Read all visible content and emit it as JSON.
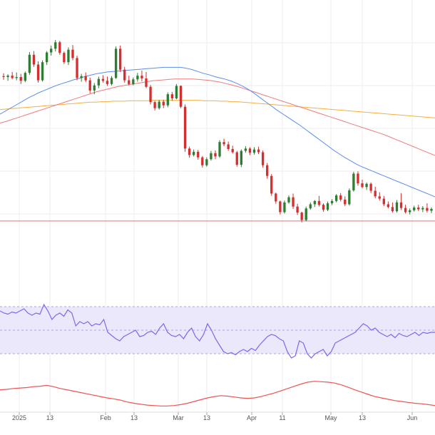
{
  "colors": {
    "up": "#2e7d32",
    "down": "#d32f2f",
    "ma_fast": "#5b8def",
    "ma_mid": "#ef7b7b",
    "ma_slow": "#f5b041",
    "support": "#e57373",
    "rsi_line": "#7b68ee",
    "rsi_band": "#ece8fb",
    "lower_line": "#ef5350",
    "grid": "#eeeeee",
    "border": "#dddddd"
  },
  "chart_data": {
    "type": "candlestick",
    "grid": true,
    "x_ticks": [
      "2025",
      "13",
      "Feb",
      "13",
      "Mar",
      "13",
      "Apr",
      "11",
      "May",
      "13",
      "Jun"
    ],
    "price": {
      "ylim": [
        50,
        103
      ],
      "support_level": 55.4,
      "candles": [
        [
          86.6,
          87.2,
          85.8,
          86.4
        ],
        [
          86.4,
          87.0,
          85.6,
          86.7
        ],
        [
          86.7,
          87.5,
          85.9,
          86.2
        ],
        [
          86.2,
          87.4,
          85.7,
          86.4
        ],
        [
          86.4,
          87.1,
          84.9,
          85.6
        ],
        [
          85.6,
          87.6,
          85.3,
          87.3
        ],
        [
          87.3,
          91.8,
          86.9,
          91.2
        ],
        [
          91.2,
          92.0,
          88.6,
          89.1
        ],
        [
          89.1,
          89.8,
          85.2,
          85.7
        ],
        [
          85.7,
          90.0,
          85.4,
          89.6
        ],
        [
          89.6,
          92.0,
          89.0,
          91.7
        ],
        [
          91.7,
          93.2,
          91.0,
          92.5
        ],
        [
          92.5,
          94.4,
          91.9,
          93.9
        ],
        [
          93.9,
          94.2,
          91.2,
          91.6
        ],
        [
          91.6,
          91.9,
          89.2,
          89.6
        ],
        [
          89.6,
          92.8,
          89.0,
          92.3
        ],
        [
          92.3,
          93.3,
          90.0,
          90.5
        ],
        [
          90.5,
          91.0,
          85.7,
          86.2
        ],
        [
          86.2,
          87.1,
          85.4,
          86.6
        ],
        [
          86.6,
          87.4,
          85.3,
          85.7
        ],
        [
          85.7,
          86.3,
          82.9,
          83.5
        ],
        [
          83.5,
          85.1,
          82.7,
          84.6
        ],
        [
          84.6,
          86.5,
          84.0,
          86.0
        ],
        [
          86.0,
          86.8,
          85.2,
          85.6
        ],
        [
          85.6,
          86.5,
          84.5,
          84.9
        ],
        [
          84.9,
          86.6,
          84.6,
          86.2
        ],
        [
          86.2,
          93.0,
          86.0,
          92.5
        ],
        [
          92.5,
          93.2,
          87.5,
          88.0
        ],
        [
          88.0,
          88.6,
          85.2,
          85.7
        ],
        [
          85.7,
          86.7,
          84.6,
          84.9
        ],
        [
          84.9,
          86.3,
          84.6,
          85.9
        ],
        [
          85.9,
          87.3,
          85.4,
          86.7
        ],
        [
          86.7,
          87.8,
          85.5,
          86.1
        ],
        [
          86.1,
          87.5,
          84.0,
          84.3
        ],
        [
          84.3,
          84.7,
          80.5,
          81.0
        ],
        [
          81.0,
          81.3,
          79.2,
          79.7
        ],
        [
          79.7,
          81.5,
          79.4,
          81.1
        ],
        [
          81.1,
          81.5,
          79.7,
          80.3
        ],
        [
          80.3,
          83.1,
          79.9,
          82.7
        ],
        [
          82.7,
          83.2,
          81.3,
          81.8
        ],
        [
          81.8,
          84.9,
          81.6,
          84.5
        ],
        [
          84.5,
          84.6,
          79.7,
          80.0
        ],
        [
          80.0,
          80.5,
          70.3,
          71.0
        ],
        [
          71.0,
          71.4,
          69.0,
          69.6
        ],
        [
          69.6,
          70.8,
          69.3,
          70.3
        ],
        [
          70.3,
          70.7,
          68.6,
          69.1
        ],
        [
          69.1,
          69.4,
          66.9,
          67.4
        ],
        [
          67.4,
          69.1,
          67.1,
          68.7
        ],
        [
          68.7,
          70.5,
          68.4,
          70.0
        ],
        [
          70.0,
          70.6,
          68.7,
          69.3
        ],
        [
          69.3,
          72.8,
          69.0,
          72.4
        ],
        [
          72.4,
          73.1,
          71.5,
          71.9
        ],
        [
          71.9,
          72.5,
          70.5,
          70.9
        ],
        [
          70.9,
          71.6,
          69.9,
          70.2
        ],
        [
          70.2,
          70.5,
          67.1,
          67.5
        ],
        [
          67.5,
          70.8,
          67.0,
          70.5
        ],
        [
          70.5,
          71.5,
          70.1,
          71.0
        ],
        [
          71.0,
          71.3,
          69.6,
          70.1
        ],
        [
          70.1,
          71.3,
          69.7,
          70.8
        ],
        [
          70.8,
          71.4,
          69.8,
          70.2
        ],
        [
          70.2,
          70.6,
          66.9,
          67.4
        ],
        [
          67.4,
          67.9,
          64.5,
          65.1
        ],
        [
          65.1,
          65.5,
          60.8,
          61.3
        ],
        [
          61.3,
          61.5,
          59.1,
          59.6
        ],
        [
          59.6,
          59.8,
          56.8,
          57.3
        ],
        [
          57.3,
          59.8,
          57.0,
          59.4
        ],
        [
          59.4,
          60.9,
          59.1,
          60.5
        ],
        [
          60.5,
          61.3,
          58.0,
          58.5
        ],
        [
          58.5,
          59.1,
          56.7,
          57.2
        ],
        [
          57.2,
          57.4,
          55.1,
          55.6
        ],
        [
          55.6,
          58.5,
          55.3,
          58.1
        ],
        [
          58.1,
          59.4,
          57.8,
          59.0
        ],
        [
          59.0,
          59.9,
          58.4,
          59.7
        ],
        [
          59.7,
          60.8,
          58.5,
          58.9
        ],
        [
          58.9,
          59.2,
          57.4,
          57.8
        ],
        [
          57.8,
          59.6,
          57.5,
          59.2
        ],
        [
          59.2,
          60.1,
          58.8,
          59.7
        ],
        [
          59.7,
          61.2,
          59.4,
          60.9
        ],
        [
          60.9,
          61.4,
          59.6,
          60.0
        ],
        [
          60.0,
          60.7,
          58.6,
          59.0
        ],
        [
          59.0,
          62.4,
          58.7,
          62.0
        ],
        [
          62.0,
          66.0,
          61.7,
          65.6
        ],
        [
          65.6,
          66.1,
          63.0,
          63.5
        ],
        [
          63.5,
          64.3,
          62.4,
          62.7
        ],
        [
          62.7,
          63.7,
          62.1,
          63.4
        ],
        [
          63.4,
          63.7,
          61.4,
          61.9
        ],
        [
          61.9,
          62.8,
          60.3,
          60.7
        ],
        [
          60.7,
          61.6,
          59.8,
          60.2
        ],
        [
          60.2,
          60.8,
          58.6,
          59.0
        ],
        [
          59.0,
          59.6,
          58.1,
          58.4
        ],
        [
          58.4,
          59.4,
          57.2,
          57.5
        ],
        [
          57.5,
          59.9,
          57.2,
          59.4
        ],
        [
          59.4,
          61.4,
          57.8,
          58.2
        ],
        [
          58.2,
          58.9,
          57.0,
          57.3
        ],
        [
          57.3,
          58.1,
          56.8,
          57.7
        ],
        [
          57.7,
          58.7,
          57.4,
          58.3
        ],
        [
          58.3,
          58.9,
          57.5,
          57.9
        ],
        [
          57.9,
          58.6,
          57.3,
          58.2
        ],
        [
          58.2,
          59.2,
          57.2,
          57.6
        ],
        [
          57.6,
          58.3,
          57.1,
          58.0
        ]
      ],
      "ma_fast": [
        78.4,
        79.1,
        79.8,
        80.5,
        81.2,
        81.9,
        82.5,
        83.1,
        83.6,
        84.1,
        84.6,
        85.0,
        85.4,
        85.8,
        86.1,
        86.5,
        86.8,
        87.1,
        87.3,
        87.5,
        87.6,
        87.7,
        87.8,
        87.9,
        88.0,
        88.1,
        88.2,
        88.3,
        88.4,
        88.5,
        88.5,
        88.5,
        88.5,
        88.3,
        88.0,
        87.6,
        87.2,
        86.9,
        86.5,
        86.2,
        85.9,
        85.5,
        85.0,
        84.4,
        83.7,
        82.9,
        82.0,
        81.1,
        80.2,
        79.3,
        78.5,
        77.7,
        76.9,
        76.1,
        75.2,
        74.3,
        73.4,
        72.5,
        71.6,
        70.7,
        69.9,
        69.1,
        68.4,
        67.7,
        67.1,
        66.6,
        66.1,
        65.6,
        65.1,
        64.6,
        64.1,
        63.6,
        63.1,
        62.6,
        62.1,
        61.6,
        61.1,
        60.6
      ],
      "ma_mid": [
        76.5,
        76.8,
        77.2,
        77.6,
        78.0,
        78.4,
        78.8,
        79.2,
        79.6,
        80.0,
        80.4,
        80.8,
        81.2,
        81.6,
        82.0,
        82.4,
        82.8,
        83.2,
        83.5,
        83.8,
        84.1,
        84.4,
        84.6,
        84.8,
        85.0,
        85.2,
        85.4,
        85.6,
        85.7,
        85.8,
        85.9,
        86.0,
        86.0,
        86.0,
        86.0,
        85.9,
        85.8,
        85.7,
        85.5,
        85.3,
        85.0,
        84.7,
        84.4,
        84.0,
        83.6,
        83.2,
        82.8,
        82.4,
        82.0,
        81.6,
        81.2,
        80.8,
        80.4,
        80.0,
        79.6,
        79.2,
        78.8,
        78.4,
        78.0,
        77.6,
        77.2,
        76.8,
        76.4,
        76.0,
        75.6,
        75.2,
        74.8,
        74.4,
        74.0,
        73.5,
        73.0,
        72.5,
        72.0,
        71.5,
        71.0,
        70.5,
        70.0,
        69.5
      ],
      "ma_slow": [
        79.4,
        79.5,
        79.6,
        79.7,
        79.8,
        79.9,
        80.0,
        80.1,
        80.2,
        80.3,
        80.4,
        80.5,
        80.6,
        80.7,
        80.8,
        80.9,
        81.0,
        81.0,
        81.1,
        81.1,
        81.2,
        81.2,
        81.2,
        81.3,
        81.3,
        81.3,
        81.3,
        81.4,
        81.4,
        81.4,
        81.4,
        81.4,
        81.4,
        81.4,
        81.4,
        81.4,
        81.3,
        81.3,
        81.3,
        81.2,
        81.2,
        81.1,
        81.1,
        81.0,
        80.9,
        80.8,
        80.7,
        80.6,
        80.5,
        80.4,
        80.3,
        80.2,
        80.1,
        80.0,
        79.9,
        79.8,
        79.7,
        79.6,
        79.5,
        79.4,
        79.3,
        79.2,
        79.1,
        79.0,
        78.9,
        78.8,
        78.7,
        78.6,
        78.5,
        78.4,
        78.3,
        78.2,
        78.1,
        78.0,
        77.9,
        77.8,
        77.7,
        77.6
      ]
    },
    "rsi": {
      "ylim": [
        20,
        80
      ],
      "band": [
        30,
        70
      ],
      "mid": 50,
      "values": [
        68,
        66,
        65,
        67,
        66,
        68,
        70,
        66,
        64,
        66,
        65,
        74,
        68,
        60,
        64,
        66,
        63,
        69,
        66,
        54,
        58,
        56,
        58,
        54,
        56,
        55,
        60,
        48,
        45,
        42,
        40,
        44,
        46,
        48,
        50,
        44,
        45,
        48,
        49,
        46,
        52,
        56,
        48,
        45,
        44,
        46,
        42,
        48,
        52,
        44,
        40,
        46,
        56,
        50,
        42,
        36,
        30,
        28,
        29,
        27,
        30,
        32,
        30,
        33,
        31,
        36,
        40,
        44,
        46,
        45,
        42,
        40,
        30,
        24,
        26,
        40,
        38,
        28,
        24,
        28,
        30,
        32,
        26,
        30,
        38,
        40,
        42,
        44,
        46,
        48,
        52,
        56,
        54,
        50,
        52,
        48,
        46,
        44,
        46,
        43,
        47,
        45,
        44,
        46,
        48,
        45,
        48,
        47,
        48,
        48
      ],
      "dashed_top": 72,
      "dashed_bottom": 28
    },
    "lower": {
      "ylim": [
        0,
        100
      ],
      "values": [
        45,
        46,
        48,
        49,
        50,
        52,
        53,
        55,
        52,
        48,
        45,
        42,
        39,
        36,
        33,
        30,
        27,
        25,
        22,
        18,
        15,
        13,
        11,
        10,
        9,
        9,
        10,
        12,
        15,
        19,
        23,
        27,
        30,
        32,
        31,
        29,
        27,
        26,
        27,
        30,
        34,
        38,
        43,
        48,
        53,
        58,
        62,
        64,
        63,
        62,
        60,
        56,
        51,
        45,
        40,
        35,
        30,
        27,
        24,
        21,
        19,
        17,
        15,
        14,
        12,
        10
      ]
    }
  }
}
